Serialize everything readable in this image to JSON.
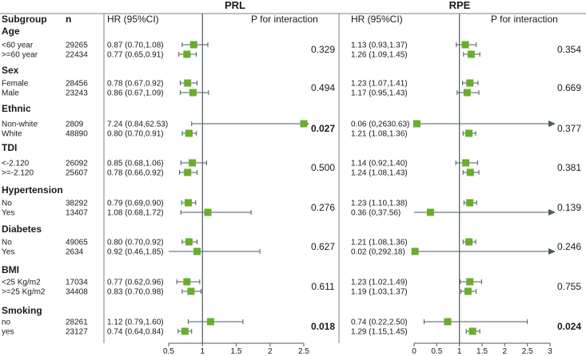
{
  "headers": {
    "subgroup": "Subgroup",
    "n": "n",
    "hr": "HR (95%CI)",
    "p": "P for interaction"
  },
  "chart_data": [
    {
      "type": "forest",
      "title": "PRL",
      "xlim": [
        0.5,
        2.5
      ],
      "xticks": [
        "0.5",
        "1",
        "1.5",
        "2",
        "2.5"
      ],
      "reference_line": 1,
      "rows": [
        {
          "hr": 0.87,
          "lo": 0.7,
          "hi": 1.08,
          "label": "0.87 (0.70,1.08)"
        },
        {
          "hr": 0.77,
          "lo": 0.65,
          "hi": 0.91,
          "label": "0.77 (0.65,0.91)"
        },
        {
          "hr": 0.78,
          "lo": 0.67,
          "hi": 0.92,
          "label": "0.78 (0.67,0.92)"
        },
        {
          "hr": 0.86,
          "lo": 0.67,
          "hi": 1.09,
          "label": "0.86 (0.67,1.09)"
        },
        {
          "hr": 7.24,
          "lo": 0.84,
          "hi": 62.53,
          "label": "7.24 (0.84,62.53)"
        },
        {
          "hr": 0.8,
          "lo": 0.7,
          "hi": 0.91,
          "label": "0.80 (0.70,0.91)"
        },
        {
          "hr": 0.85,
          "lo": 0.68,
          "hi": 1.06,
          "label": "0.85 (0.68,1.06)"
        },
        {
          "hr": 0.78,
          "lo": 0.66,
          "hi": 0.92,
          "label": "0.78 (0.66,0.92)"
        },
        {
          "hr": 0.79,
          "lo": 0.69,
          "hi": 0.9,
          "label": "0.79 (0.69,0.90)"
        },
        {
          "hr": 1.08,
          "lo": 0.68,
          "hi": 1.72,
          "label": "1.08 (0.68,1.72)"
        },
        {
          "hr": 0.8,
          "lo": 0.7,
          "hi": 0.92,
          "label": "0.80 (0.70,0.92)"
        },
        {
          "hr": 0.92,
          "lo": 0.46,
          "hi": 1.85,
          "label": "0.92 (0.46,1.85)"
        },
        {
          "hr": 0.77,
          "lo": 0.62,
          "hi": 0.96,
          "label": "0.77 (0.62,0.96)"
        },
        {
          "hr": 0.83,
          "lo": 0.7,
          "hi": 0.98,
          "label": "0.83 (0.70,0.98)"
        },
        {
          "hr": 1.12,
          "lo": 0.79,
          "hi": 1.6,
          "label": "1.12 (0.79,1.60)"
        },
        {
          "hr": 0.74,
          "lo": 0.64,
          "hi": 0.84,
          "label": "0.74 (0.64,0.84)"
        }
      ],
      "p_values": [
        {
          "text": "0.329",
          "bold": false
        },
        {
          "text": "0.494",
          "bold": false
        },
        {
          "text": "0.027",
          "bold": true
        },
        {
          "text": "0.500",
          "bold": false
        },
        {
          "text": "0.276",
          "bold": false
        },
        {
          "text": "0.627",
          "bold": false
        },
        {
          "text": "0.611",
          "bold": false
        },
        {
          "text": "0.018",
          "bold": true
        }
      ]
    },
    {
      "type": "forest",
      "title": "RPE",
      "xlim": [
        0,
        3
      ],
      "xticks": [
        "0",
        "0.5",
        "1",
        "1.5",
        "2",
        "2.5",
        "3"
      ],
      "reference_line": 1,
      "rows": [
        {
          "hr": 1.13,
          "lo": 0.93,
          "hi": 1.37,
          "label": "1.13 (0.93,1.37)"
        },
        {
          "hr": 1.26,
          "lo": 1.09,
          "hi": 1.45,
          "label": "1.26 (1.09,1.45)"
        },
        {
          "hr": 1.23,
          "lo": 1.07,
          "hi": 1.41,
          "label": "1.23 (1.07,1.41)"
        },
        {
          "hr": 1.17,
          "lo": 0.95,
          "hi": 1.43,
          "label": "1.17 (0.95,1.43)"
        },
        {
          "hr": 0.06,
          "lo": 0,
          "hi": 2630.63,
          "label": "0.06 (0,2630.63)"
        },
        {
          "hr": 1.21,
          "lo": 1.08,
          "hi": 1.36,
          "label": "1.21 (1.08,1.36)"
        },
        {
          "hr": 1.14,
          "lo": 0.92,
          "hi": 1.4,
          "label": "1.14 (0.92,1.40)"
        },
        {
          "hr": 1.24,
          "lo": 1.08,
          "hi": 1.43,
          "label": "1.24 (1.08,1.43)"
        },
        {
          "hr": 1.23,
          "lo": 1.1,
          "hi": 1.38,
          "label": "1.23 (1.10,1.38)"
        },
        {
          "hr": 0.36,
          "lo": 0,
          "hi": 37.56,
          "label": "0.36 (0,37.56)"
        },
        {
          "hr": 1.21,
          "lo": 1.08,
          "hi": 1.36,
          "label": "1.21 (1.08,1.36)"
        },
        {
          "hr": 0.02,
          "lo": 0,
          "hi": 292.18,
          "label": "0.02 (0,292.18)"
        },
        {
          "hr": 1.23,
          "lo": 1.02,
          "hi": 1.49,
          "label": "1.23 (1.02,1.49)"
        },
        {
          "hr": 1.19,
          "lo": 1.03,
          "hi": 1.37,
          "label": "1.19 (1.03,1.37)"
        },
        {
          "hr": 0.74,
          "lo": 0.22,
          "hi": 2.5,
          "label": "0.74 (0.22,2.50)"
        },
        {
          "hr": 1.29,
          "lo": 1.15,
          "hi": 1.45,
          "label": "1.29 (1.15,1.45)"
        }
      ],
      "p_values": [
        {
          "text": "0.354",
          "bold": false
        },
        {
          "text": "0.669",
          "bold": false
        },
        {
          "text": "0.377",
          "bold": false
        },
        {
          "text": "0.381",
          "bold": false
        },
        {
          "text": "0.139",
          "bold": false
        },
        {
          "text": "0.246",
          "bold": false
        },
        {
          "text": "0.755",
          "bold": false
        },
        {
          "text": "0.024",
          "bold": true
        }
      ]
    }
  ],
  "groups": [
    {
      "name": "Age",
      "rows": [
        {
          "label": "<60 year",
          "n": "29265"
        },
        {
          "label": ">=60 year",
          "n": "22434"
        }
      ]
    },
    {
      "name": "Sex",
      "rows": [
        {
          "label": "Female",
          "n": "28456"
        },
        {
          "label": "Male",
          "n": "23243"
        }
      ]
    },
    {
      "name": "Ethnic",
      "rows": [
        {
          "label": "Non-white",
          "n": "2809"
        },
        {
          "label": "White",
          "n": "48890"
        }
      ]
    },
    {
      "name": "TDI",
      "rows": [
        {
          "label": "<-2.120",
          "n": "26092"
        },
        {
          "label": ">=-2.120",
          "n": "25607"
        }
      ]
    },
    {
      "name": "Hypertension",
      "rows": [
        {
          "label": "No",
          "n": "38292"
        },
        {
          "label": "Yes",
          "n": "13407"
        }
      ]
    },
    {
      "name": "Diabetes",
      "rows": [
        {
          "label": "No",
          "n": "49065"
        },
        {
          "label": "Yes",
          "n": "2634"
        }
      ]
    },
    {
      "name": "BMI",
      "rows": [
        {
          "label": "<25 Kg/m2",
          "n": "17034"
        },
        {
          "label": ">=25 Kg/m2",
          "n": "34408"
        }
      ]
    },
    {
      "name": "Smoking",
      "rows": [
        {
          "label": "no",
          "n": "28261"
        },
        {
          "label": "yes",
          "n": "23127"
        }
      ]
    }
  ],
  "colors": {
    "marker": "#6aad2c",
    "line": "#4a5a60",
    "text": "#1a1a1a",
    "rule": "#7f7f7f"
  }
}
